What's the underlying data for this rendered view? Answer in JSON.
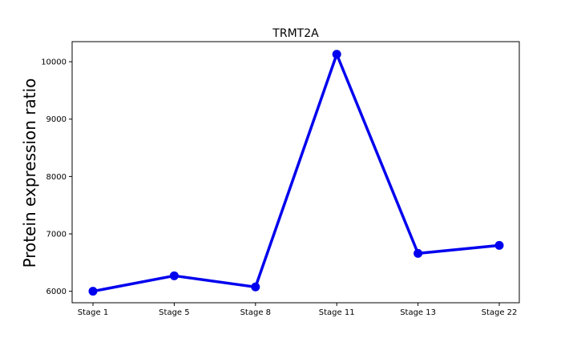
{
  "chart_data": {
    "type": "line",
    "title": "TRMT2A",
    "xlabel": "",
    "ylabel": "Protein expression ratio",
    "categories": [
      "Stage 1",
      "Stage 5",
      "Stage 8",
      "Stage 11",
      "Stage 13",
      "Stage 22"
    ],
    "series": [
      {
        "values": [
          6000,
          6270,
          6075,
          10130,
          6660,
          6800
        ],
        "color": "#0000ee"
      }
    ],
    "ylim": [
      5800,
      10350
    ],
    "yticks": [
      6000,
      7000,
      8000,
      9000,
      10000
    ],
    "grid": false,
    "legend": "none"
  }
}
